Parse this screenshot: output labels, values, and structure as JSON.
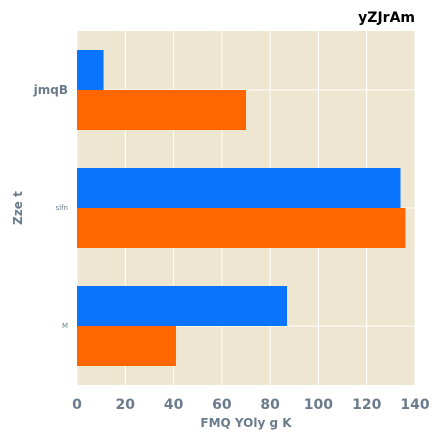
{
  "chart_data": {
    "type": "bar",
    "orientation": "horizontal",
    "title": "yZJrAm",
    "xlabel": "FMQ YOly g  K",
    "ylabel": "Zze t",
    "categories": [
      "jmqB",
      "slfn",
      "M"
    ],
    "series": [
      {
        "values": [
          11,
          134,
          87
        ],
        "color": "#0a74ff"
      },
      {
        "values": [
          70,
          136,
          41
        ],
        "color": "#ff6600"
      }
    ],
    "xlim": [
      0,
      140
    ],
    "xticks": [
      0,
      20,
      40,
      60,
      80,
      100,
      120,
      140
    ],
    "grid": true,
    "background": "#efe6d2",
    "grid_color": "#ffffff"
  }
}
